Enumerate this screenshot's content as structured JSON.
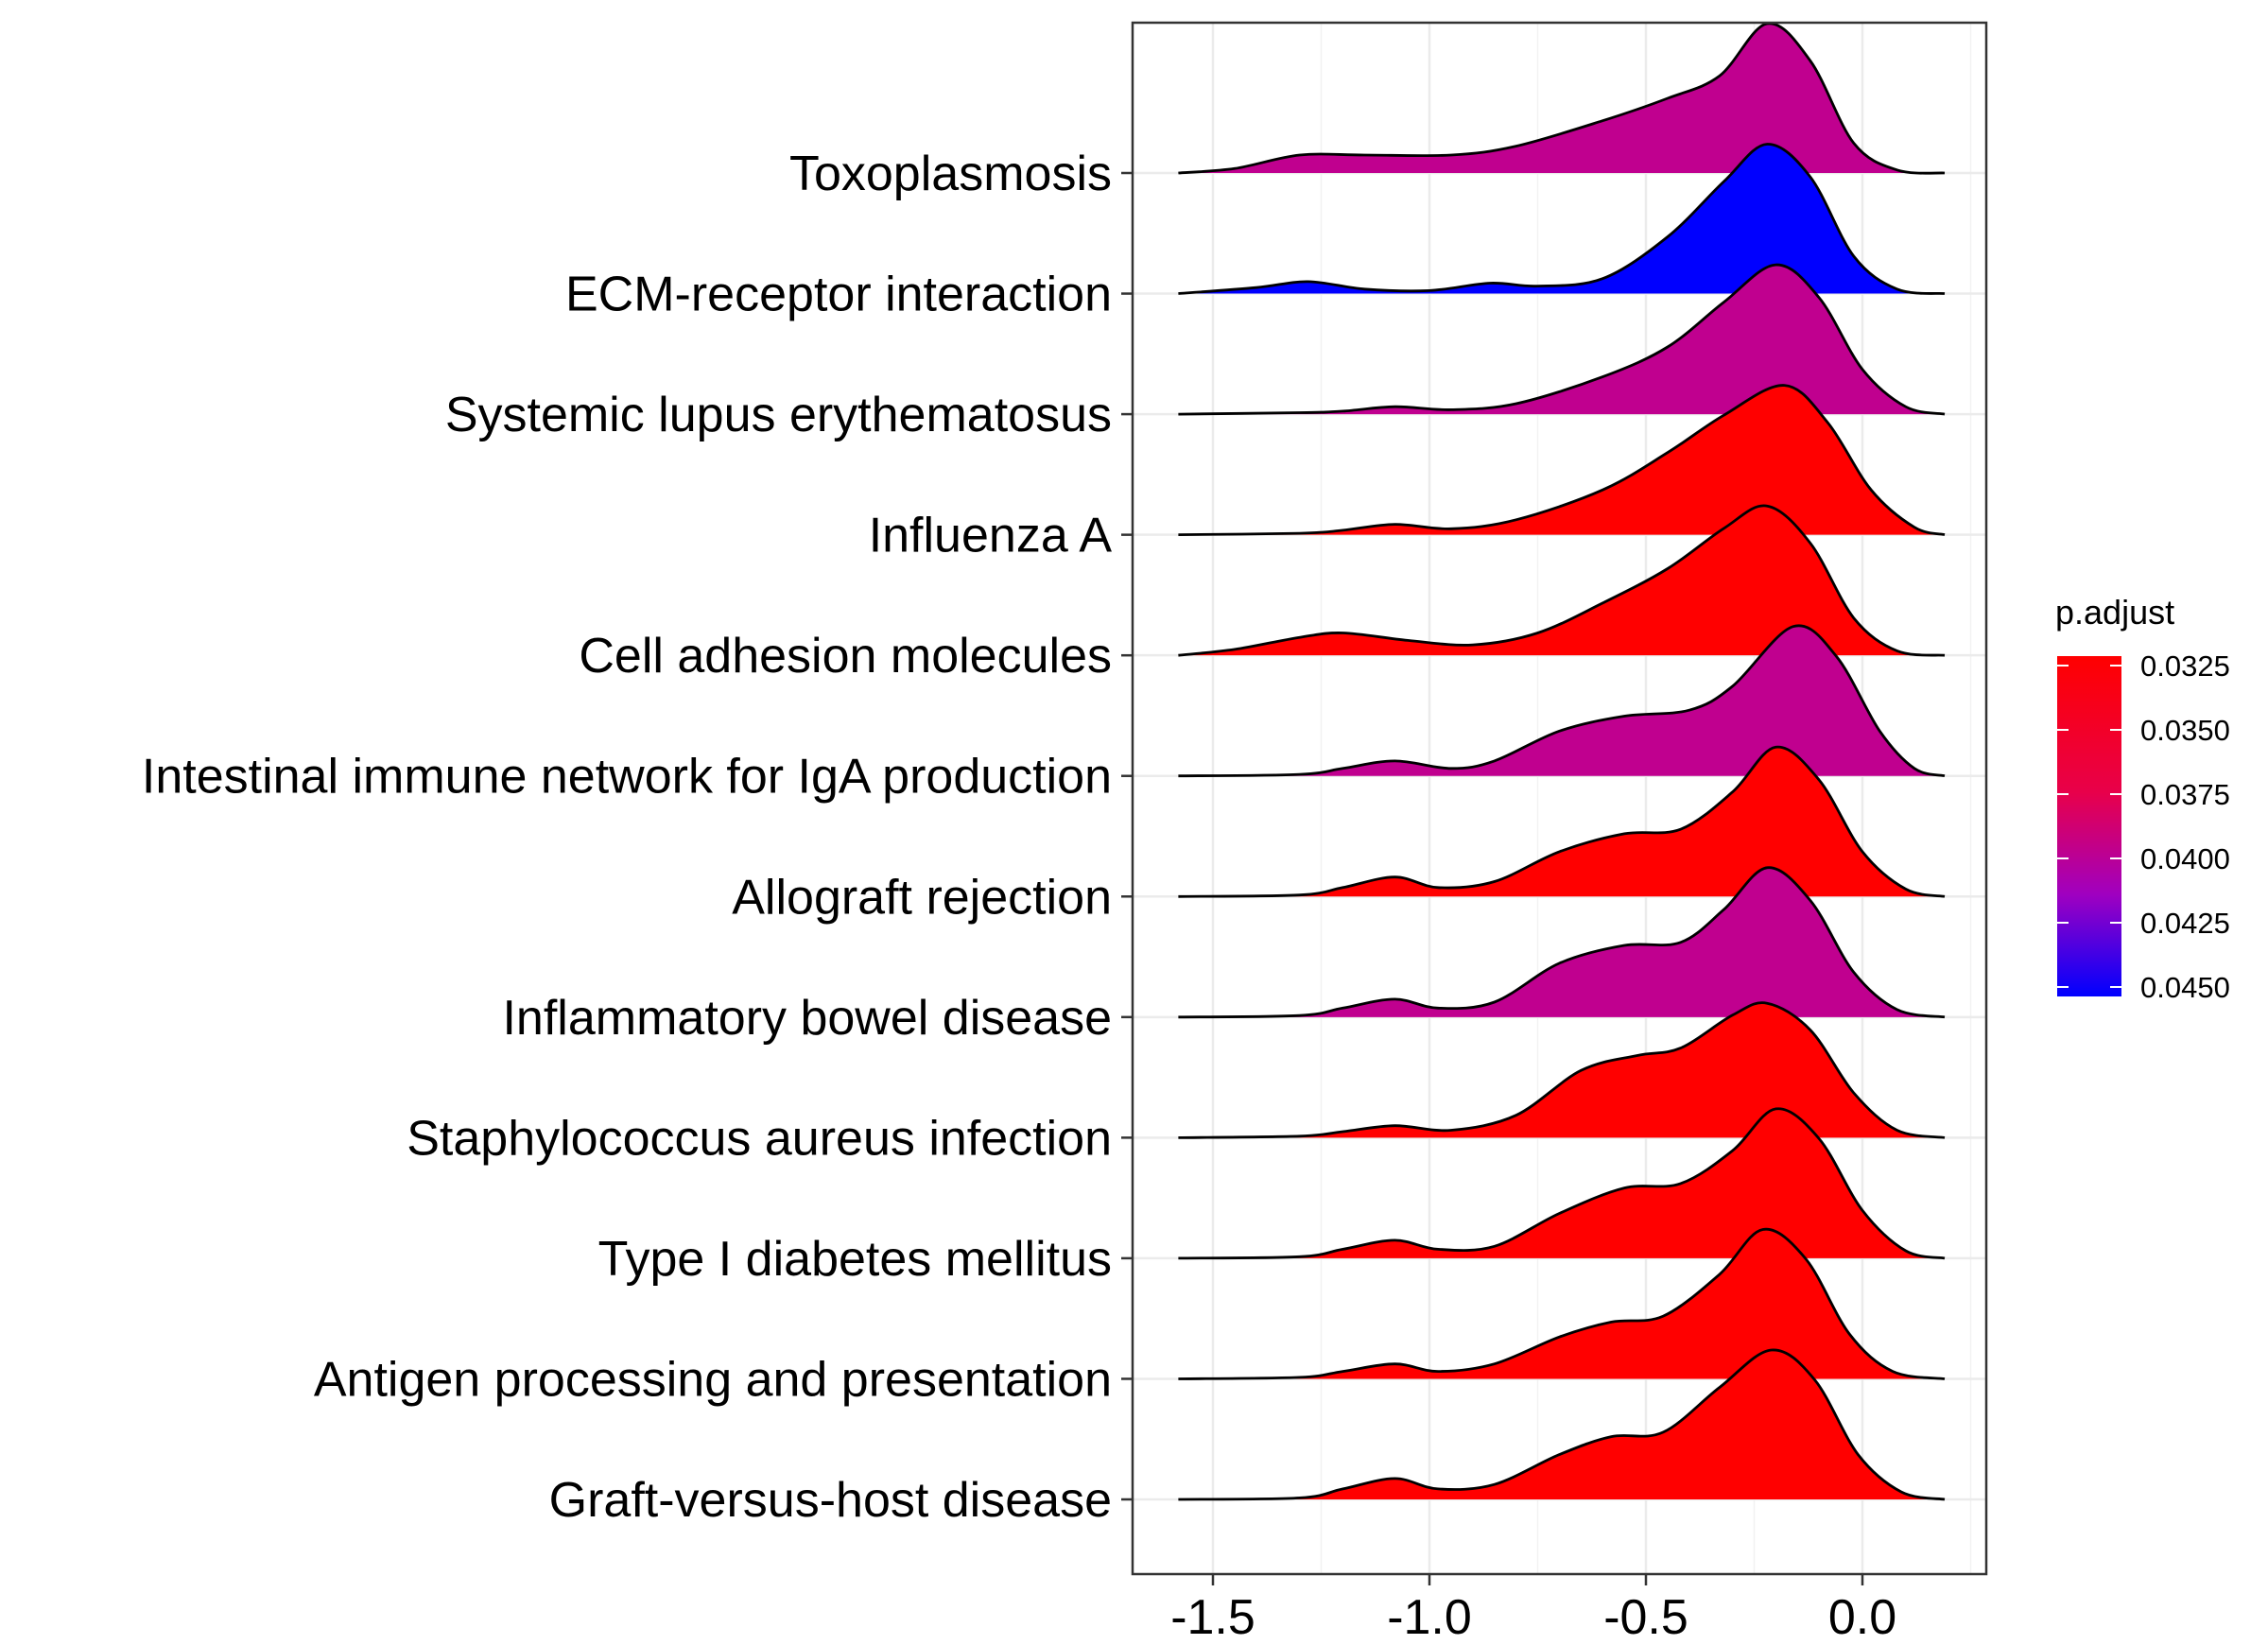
{
  "chart_data": {
    "type": "ridgeline",
    "title": "",
    "xlabel": "",
    "ylabel": "",
    "xlim": [
      -1.65,
      0.28
    ],
    "x_ticks": [
      -1.5,
      -1.0,
      -0.5,
      0.0
    ],
    "x_tick_labels": [
      "-1.5",
      "-1.0",
      "-0.5",
      "0.0"
    ],
    "grid": true,
    "legend": {
      "title": "p.adjust",
      "placement": "right",
      "range": [
        0.0325,
        0.045
      ],
      "ticks": [
        0.0325,
        0.035,
        0.0375,
        0.04,
        0.0425,
        0.045
      ],
      "tick_labels": [
        "0.0325",
        "0.0350",
        "0.0375",
        "0.0400",
        "0.0425",
        "0.0450"
      ],
      "low_color": "#FF0000",
      "high_color": "#0000FF"
    },
    "series": [
      {
        "name": "Toxoplasmosis",
        "p_adjust": 0.0398,
        "color": "#C0008F",
        "density": [
          [
            -1.58,
            0.0
          ],
          [
            -1.45,
            0.03
          ],
          [
            -1.3,
            0.12
          ],
          [
            -1.15,
            0.12
          ],
          [
            -0.95,
            0.12
          ],
          [
            -0.8,
            0.18
          ],
          [
            -0.6,
            0.35
          ],
          [
            -0.45,
            0.5
          ],
          [
            -0.33,
            0.65
          ],
          [
            -0.22,
            1.0
          ],
          [
            -0.12,
            0.75
          ],
          [
            -0.02,
            0.2
          ],
          [
            0.08,
            0.02
          ],
          [
            0.19,
            0.0
          ]
        ]
      },
      {
        "name": "ECM-receptor interaction",
        "p_adjust": 0.045,
        "color": "#0000FF",
        "density": [
          [
            -1.58,
            0.0
          ],
          [
            -1.4,
            0.04
          ],
          [
            -1.28,
            0.08
          ],
          [
            -1.15,
            0.03
          ],
          [
            -1.0,
            0.02
          ],
          [
            -0.86,
            0.07
          ],
          [
            -0.75,
            0.05
          ],
          [
            -0.6,
            0.1
          ],
          [
            -0.45,
            0.38
          ],
          [
            -0.32,
            0.75
          ],
          [
            -0.22,
            1.0
          ],
          [
            -0.12,
            0.78
          ],
          [
            -0.02,
            0.25
          ],
          [
            0.08,
            0.03
          ],
          [
            0.19,
            0.0
          ]
        ]
      },
      {
        "name": "Systemic lupus erythematosus",
        "p_adjust": 0.0398,
        "color": "#C0008F",
        "density": [
          [
            -1.58,
            0.0
          ],
          [
            -1.3,
            0.01
          ],
          [
            -1.2,
            0.02
          ],
          [
            -1.08,
            0.05
          ],
          [
            -0.95,
            0.03
          ],
          [
            -0.8,
            0.07
          ],
          [
            -0.6,
            0.25
          ],
          [
            -0.45,
            0.45
          ],
          [
            -0.32,
            0.75
          ],
          [
            -0.2,
            1.0
          ],
          [
            -0.1,
            0.78
          ],
          [
            0.0,
            0.3
          ],
          [
            0.1,
            0.05
          ],
          [
            0.19,
            0.0
          ]
        ]
      },
      {
        "name": "Influenza A",
        "p_adjust": 0.0325,
        "color": "#FF0000",
        "density": [
          [
            -1.58,
            0.0
          ],
          [
            -1.3,
            0.01
          ],
          [
            -1.2,
            0.03
          ],
          [
            -1.08,
            0.07
          ],
          [
            -0.95,
            0.04
          ],
          [
            -0.8,
            0.1
          ],
          [
            -0.6,
            0.3
          ],
          [
            -0.45,
            0.55
          ],
          [
            -0.32,
            0.8
          ],
          [
            -0.18,
            1.0
          ],
          [
            -0.08,
            0.75
          ],
          [
            0.02,
            0.3
          ],
          [
            0.12,
            0.05
          ],
          [
            0.19,
            0.0
          ]
        ]
      },
      {
        "name": "Cell adhesion molecules",
        "p_adjust": 0.0325,
        "color": "#FF0000",
        "density": [
          [
            -1.58,
            0.0
          ],
          [
            -1.45,
            0.04
          ],
          [
            -1.3,
            0.12
          ],
          [
            -1.2,
            0.15
          ],
          [
            -1.05,
            0.1
          ],
          [
            -0.9,
            0.07
          ],
          [
            -0.75,
            0.15
          ],
          [
            -0.6,
            0.35
          ],
          [
            -0.45,
            0.58
          ],
          [
            -0.32,
            0.85
          ],
          [
            -0.22,
            1.0
          ],
          [
            -0.12,
            0.75
          ],
          [
            -0.02,
            0.25
          ],
          [
            0.08,
            0.03
          ],
          [
            0.19,
            0.0
          ]
        ]
      },
      {
        "name": "Intestinal immune network for IgA production",
        "p_adjust": 0.0398,
        "color": "#C0008F",
        "density": [
          [
            -1.58,
            0.0
          ],
          [
            -1.3,
            0.01
          ],
          [
            -1.2,
            0.05
          ],
          [
            -1.08,
            0.1
          ],
          [
            -0.95,
            0.05
          ],
          [
            -0.85,
            0.1
          ],
          [
            -0.7,
            0.3
          ],
          [
            -0.55,
            0.4
          ],
          [
            -0.4,
            0.44
          ],
          [
            -0.3,
            0.6
          ],
          [
            -0.16,
            1.0
          ],
          [
            -0.06,
            0.8
          ],
          [
            0.04,
            0.3
          ],
          [
            0.12,
            0.05
          ],
          [
            0.19,
            0.0
          ]
        ]
      },
      {
        "name": "Allograft rejection",
        "p_adjust": 0.0325,
        "color": "#FF0000",
        "density": [
          [
            -1.58,
            0.0
          ],
          [
            -1.3,
            0.01
          ],
          [
            -1.2,
            0.06
          ],
          [
            -1.08,
            0.13
          ],
          [
            -0.98,
            0.06
          ],
          [
            -0.85,
            0.1
          ],
          [
            -0.7,
            0.3
          ],
          [
            -0.55,
            0.42
          ],
          [
            -0.42,
            0.45
          ],
          [
            -0.3,
            0.7
          ],
          [
            -0.2,
            1.0
          ],
          [
            -0.1,
            0.78
          ],
          [
            0.0,
            0.3
          ],
          [
            0.1,
            0.05
          ],
          [
            0.19,
            0.0
          ]
        ]
      },
      {
        "name": "Inflammatory bowel disease",
        "p_adjust": 0.0398,
        "color": "#C0008F",
        "density": [
          [
            -1.58,
            0.0
          ],
          [
            -1.3,
            0.01
          ],
          [
            -1.2,
            0.06
          ],
          [
            -1.08,
            0.12
          ],
          [
            -0.98,
            0.06
          ],
          [
            -0.85,
            0.1
          ],
          [
            -0.7,
            0.36
          ],
          [
            -0.55,
            0.48
          ],
          [
            -0.42,
            0.5
          ],
          [
            -0.32,
            0.72
          ],
          [
            -0.22,
            1.0
          ],
          [
            -0.12,
            0.78
          ],
          [
            -0.02,
            0.3
          ],
          [
            0.08,
            0.05
          ],
          [
            0.19,
            0.0
          ]
        ]
      },
      {
        "name": "Staphylococcus aureus infection",
        "p_adjust": 0.0325,
        "color": "#FF0000",
        "density": [
          [
            -1.58,
            0.0
          ],
          [
            -1.3,
            0.01
          ],
          [
            -1.2,
            0.04
          ],
          [
            -1.08,
            0.08
          ],
          [
            -0.95,
            0.05
          ],
          [
            -0.8,
            0.15
          ],
          [
            -0.65,
            0.45
          ],
          [
            -0.52,
            0.55
          ],
          [
            -0.42,
            0.6
          ],
          [
            -0.3,
            0.82
          ],
          [
            -0.22,
            0.9
          ],
          [
            -0.12,
            0.72
          ],
          [
            -0.02,
            0.3
          ],
          [
            0.08,
            0.05
          ],
          [
            0.19,
            0.0
          ]
        ]
      },
      {
        "name": "Type I diabetes mellitus",
        "p_adjust": 0.0325,
        "color": "#FF0000",
        "density": [
          [
            -1.58,
            0.0
          ],
          [
            -1.3,
            0.01
          ],
          [
            -1.2,
            0.06
          ],
          [
            -1.08,
            0.12
          ],
          [
            -0.98,
            0.06
          ],
          [
            -0.85,
            0.08
          ],
          [
            -0.7,
            0.3
          ],
          [
            -0.55,
            0.47
          ],
          [
            -0.42,
            0.5
          ],
          [
            -0.3,
            0.72
          ],
          [
            -0.2,
            1.0
          ],
          [
            -0.1,
            0.8
          ],
          [
            0.0,
            0.32
          ],
          [
            0.1,
            0.05
          ],
          [
            0.19,
            0.0
          ]
        ]
      },
      {
        "name": "Antigen processing and presentation",
        "p_adjust": 0.0325,
        "color": "#FF0000",
        "density": [
          [
            -1.58,
            0.0
          ],
          [
            -1.3,
            0.01
          ],
          [
            -1.2,
            0.05
          ],
          [
            -1.08,
            0.1
          ],
          [
            -0.98,
            0.05
          ],
          [
            -0.85,
            0.1
          ],
          [
            -0.7,
            0.28
          ],
          [
            -0.58,
            0.38
          ],
          [
            -0.46,
            0.42
          ],
          [
            -0.33,
            0.7
          ],
          [
            -0.23,
            1.0
          ],
          [
            -0.13,
            0.8
          ],
          [
            -0.03,
            0.3
          ],
          [
            0.07,
            0.05
          ],
          [
            0.19,
            0.0
          ]
        ]
      },
      {
        "name": "Graft-versus-host disease",
        "p_adjust": 0.0325,
        "color": "#FF0000",
        "density": [
          [
            -1.58,
            0.0
          ],
          [
            -1.3,
            0.01
          ],
          [
            -1.2,
            0.07
          ],
          [
            -1.08,
            0.14
          ],
          [
            -0.98,
            0.07
          ],
          [
            -0.85,
            0.1
          ],
          [
            -0.7,
            0.3
          ],
          [
            -0.58,
            0.42
          ],
          [
            -0.46,
            0.45
          ],
          [
            -0.33,
            0.75
          ],
          [
            -0.21,
            1.0
          ],
          [
            -0.11,
            0.8
          ],
          [
            -0.01,
            0.3
          ],
          [
            0.09,
            0.05
          ],
          [
            0.19,
            0.0
          ]
        ]
      }
    ]
  }
}
